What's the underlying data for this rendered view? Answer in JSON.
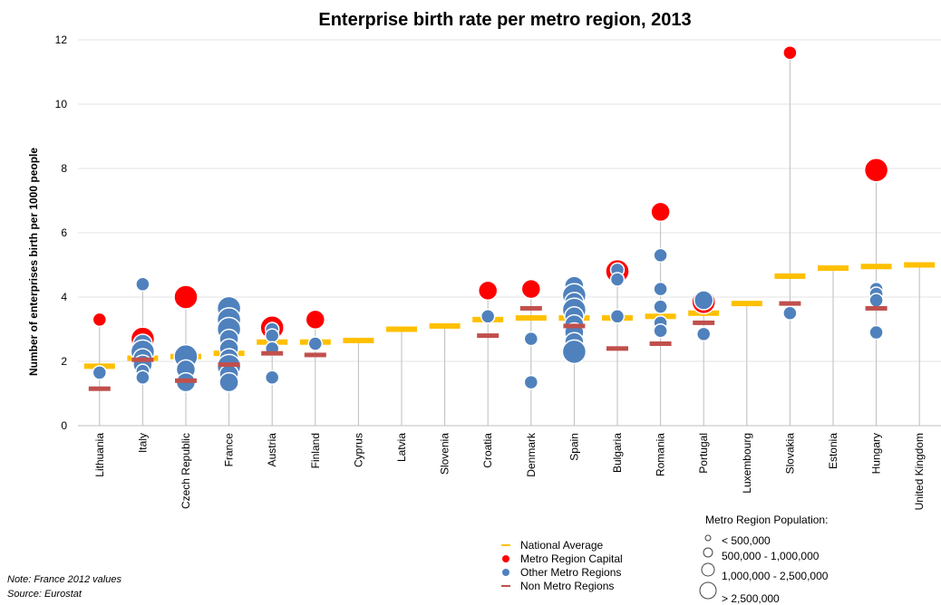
{
  "chart_data": {
    "type": "scatter",
    "title": "Enterprise birth rate per metro region,  2013",
    "ylabel": "Number of enterprises birth per 1000 people",
    "xlabel": "",
    "ylim": [
      0,
      12
    ],
    "yticks": [
      0,
      2,
      4,
      6,
      8,
      10,
      12
    ],
    "grid": true,
    "categories": [
      "Lithuania",
      "Italy",
      "Czech Republic",
      "France",
      "Austria",
      "Finland",
      "Cyprus",
      "Latvia",
      "Slovenia",
      "Croatia",
      "Denmark",
      "Spain",
      "Bulgaria",
      "Romania",
      "Portugal",
      "Luxembourg",
      "Slovakia",
      "Estonia",
      "Hungary",
      "United Kingdom"
    ],
    "series": [
      {
        "name": "National Average",
        "marker": "dash",
        "color": "#FFC000",
        "values": [
          1.85,
          2.1,
          2.15,
          2.25,
          2.6,
          2.6,
          2.65,
          3.0,
          3.1,
          3.3,
          3.35,
          3.35,
          3.35,
          3.4,
          3.5,
          3.8,
          4.65,
          4.9,
          4.95,
          5.0
        ]
      },
      {
        "name": "Non Metro Regions",
        "marker": "dash",
        "color": "#C0504D",
        "values": [
          1.15,
          2.05,
          1.4,
          1.9,
          2.25,
          2.2,
          null,
          null,
          null,
          2.8,
          3.65,
          3.1,
          2.4,
          2.55,
          3.2,
          null,
          3.8,
          null,
          3.65,
          null
        ]
      },
      {
        "name": "Metro Region Capital",
        "marker": "circle",
        "color": "#FF0000",
        "points": [
          {
            "cat": 0,
            "y": 3.3,
            "size": 1
          },
          {
            "cat": 1,
            "y": 2.7,
            "size": 3
          },
          {
            "cat": 2,
            "y": 4.0,
            "size": 3
          },
          {
            "cat": 3,
            "y": 3.05,
            "size": 3
          },
          {
            "cat": 4,
            "y": 3.05,
            "size": 3
          },
          {
            "cat": 5,
            "y": 3.3,
            "size": 2
          },
          {
            "cat": 9,
            "y": 4.2,
            "size": 2
          },
          {
            "cat": 10,
            "y": 4.25,
            "size": 2
          },
          {
            "cat": 12,
            "y": 4.8,
            "size": 3
          },
          {
            "cat": 13,
            "y": 6.65,
            "size": 2
          },
          {
            "cat": 14,
            "y": 3.85,
            "size": 3
          },
          {
            "cat": 16,
            "y": 11.6,
            "size": 1
          },
          {
            "cat": 18,
            "y": 7.95,
            "size": 3
          }
        ]
      },
      {
        "name": "Other Metro Regions",
        "marker": "circle",
        "color": "#4F81BD",
        "points": [
          {
            "cat": 0,
            "y": 1.65,
            "size": 1
          },
          {
            "cat": 1,
            "y": 4.4,
            "size": 1
          },
          {
            "cat": 1,
            "y": 2.55,
            "size": 2
          },
          {
            "cat": 1,
            "y": 2.3,
            "size": 3
          },
          {
            "cat": 1,
            "y": 2.1,
            "size": 2
          },
          {
            "cat": 1,
            "y": 1.9,
            "size": 2
          },
          {
            "cat": 1,
            "y": 1.7,
            "size": 1
          },
          {
            "cat": 1,
            "y": 1.5,
            "size": 1
          },
          {
            "cat": 2,
            "y": 2.15,
            "size": 3
          },
          {
            "cat": 2,
            "y": 1.75,
            "size": 2
          },
          {
            "cat": 2,
            "y": 1.35,
            "size": 2
          },
          {
            "cat": 3,
            "y": 3.65,
            "size": 3
          },
          {
            "cat": 3,
            "y": 3.3,
            "size": 3
          },
          {
            "cat": 3,
            "y": 3.0,
            "size": 3
          },
          {
            "cat": 3,
            "y": 2.7,
            "size": 2
          },
          {
            "cat": 3,
            "y": 2.4,
            "size": 2
          },
          {
            "cat": 3,
            "y": 2.1,
            "size": 2
          },
          {
            "cat": 3,
            "y": 1.85,
            "size": 3
          },
          {
            "cat": 3,
            "y": 1.6,
            "size": 2
          },
          {
            "cat": 3,
            "y": 1.35,
            "size": 2
          },
          {
            "cat": 4,
            "y": 3.0,
            "size": 1
          },
          {
            "cat": 4,
            "y": 2.8,
            "size": 1
          },
          {
            "cat": 4,
            "y": 2.4,
            "size": 1
          },
          {
            "cat": 4,
            "y": 1.5,
            "size": 1
          },
          {
            "cat": 5,
            "y": 2.55,
            "size": 1
          },
          {
            "cat": 9,
            "y": 3.4,
            "size": 1
          },
          {
            "cat": 10,
            "y": 2.7,
            "size": 1
          },
          {
            "cat": 10,
            "y": 1.35,
            "size": 1
          },
          {
            "cat": 11,
            "y": 4.35,
            "size": 2
          },
          {
            "cat": 11,
            "y": 4.05,
            "size": 3
          },
          {
            "cat": 11,
            "y": 3.85,
            "size": 2
          },
          {
            "cat": 11,
            "y": 3.6,
            "size": 3
          },
          {
            "cat": 11,
            "y": 3.4,
            "size": 2
          },
          {
            "cat": 11,
            "y": 3.15,
            "size": 2
          },
          {
            "cat": 11,
            "y": 2.9,
            "size": 2
          },
          {
            "cat": 11,
            "y": 2.6,
            "size": 2
          },
          {
            "cat": 11,
            "y": 2.3,
            "size": 3
          },
          {
            "cat": 12,
            "y": 4.85,
            "size": 1
          },
          {
            "cat": 12,
            "y": 4.55,
            "size": 1
          },
          {
            "cat": 12,
            "y": 3.4,
            "size": 1
          },
          {
            "cat": 13,
            "y": 5.3,
            "size": 1
          },
          {
            "cat": 13,
            "y": 4.25,
            "size": 1
          },
          {
            "cat": 13,
            "y": 3.7,
            "size": 1
          },
          {
            "cat": 13,
            "y": 3.2,
            "size": 1
          },
          {
            "cat": 13,
            "y": 2.95,
            "size": 1
          },
          {
            "cat": 14,
            "y": 3.9,
            "size": 2
          },
          {
            "cat": 14,
            "y": 2.85,
            "size": 1
          },
          {
            "cat": 16,
            "y": 3.5,
            "size": 1
          },
          {
            "cat": 18,
            "y": 4.25,
            "size": 1
          },
          {
            "cat": 18,
            "y": 4.1,
            "size": 1
          },
          {
            "cat": 18,
            "y": 3.9,
            "size": 1
          },
          {
            "cat": 18,
            "y": 2.9,
            "size": 1
          }
        ]
      }
    ],
    "size_legend": {
      "title": "Metro Region Population:",
      "items": [
        "< 500,000",
        "500,000 - 1,000,000",
        "1,000,000 - 2,500,000",
        "> 2,500,000"
      ]
    },
    "legend_position": "bottom"
  },
  "notes": {
    "note": "Note: France 2012 values",
    "source": "Source: Eurostat"
  }
}
